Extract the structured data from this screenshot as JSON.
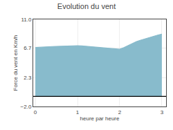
{
  "chart_data": {
    "type": "area",
    "title": "Evolution du vent",
    "xlabel": "heure par heure",
    "ylabel": "Force du vent en Km/h",
    "x": [
      0.0,
      0.1,
      0.2,
      0.3,
      0.4,
      0.5,
      0.6,
      0.7,
      0.8,
      0.9,
      1.0,
      1.1,
      1.2,
      1.3,
      1.4,
      1.5,
      1.6,
      1.7,
      1.8,
      1.9,
      2.0,
      2.1,
      2.2,
      2.3,
      2.4,
      2.5,
      2.6,
      2.7,
      2.8,
      2.9,
      3.0
    ],
    "values": [
      6.8,
      6.85,
      6.9,
      6.95,
      6.95,
      6.97,
      7.0,
      7.02,
      7.05,
      7.05,
      7.08,
      7.05,
      7.0,
      6.95,
      6.85,
      6.8,
      6.75,
      6.7,
      6.65,
      6.6,
      6.55,
      6.8,
      7.1,
      7.4,
      7.7,
      7.9,
      8.1,
      8.3,
      8.5,
      8.65,
      8.8
    ],
    "baseline": -0.5,
    "color": "#88bbcc",
    "xlim": [
      -0.05,
      3.1
    ],
    "xticks": [
      0,
      1,
      2,
      3
    ],
    "ylim": [
      -2.0,
      11.0
    ],
    "yticks": [
      {
        "value": -2.0,
        "label": "−2.0"
      },
      2.3,
      6.7,
      {
        "value": 11.0,
        "label": "11.0"
      }
    ],
    "grid": true
  }
}
